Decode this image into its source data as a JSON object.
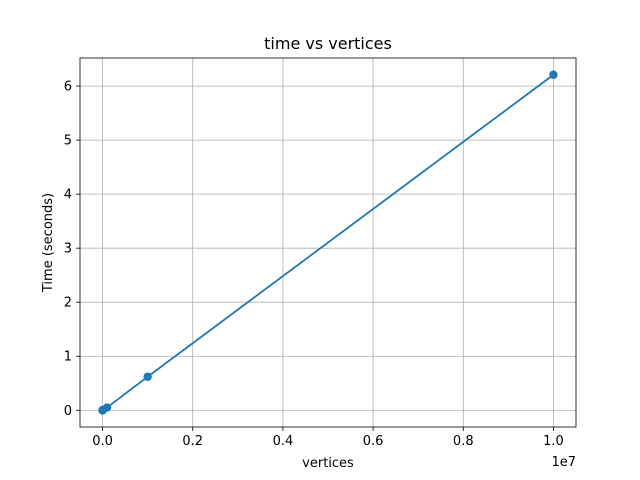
{
  "chart_data": {
    "type": "line",
    "title": "time vs vertices",
    "xlabel": "vertices",
    "ylabel": "Time (seconds)",
    "x_offset_label": "1e7",
    "xlim": [
      -500000,
      10500000
    ],
    "ylim": [
      -0.31,
      6.52
    ],
    "grid": true,
    "x_ticks": [
      0,
      2000000,
      4000000,
      6000000,
      8000000,
      10000000
    ],
    "x_tick_labels": [
      "0.0",
      "0.2",
      "0.4",
      "0.6",
      "0.8",
      "1.0"
    ],
    "y_ticks": [
      0,
      1,
      2,
      3,
      4,
      5,
      6
    ],
    "y_tick_labels": [
      "0",
      "1",
      "2",
      "3",
      "4",
      "5",
      "6"
    ],
    "series": [
      {
        "color": "#1f77b4",
        "marker": "circle",
        "x": [
          10,
          100,
          1000,
          10000,
          100000,
          1000000,
          10000000
        ],
        "y": [
          0.0,
          0.0,
          0.0005,
          0.005,
          0.05,
          0.62,
          6.21
        ]
      }
    ]
  }
}
